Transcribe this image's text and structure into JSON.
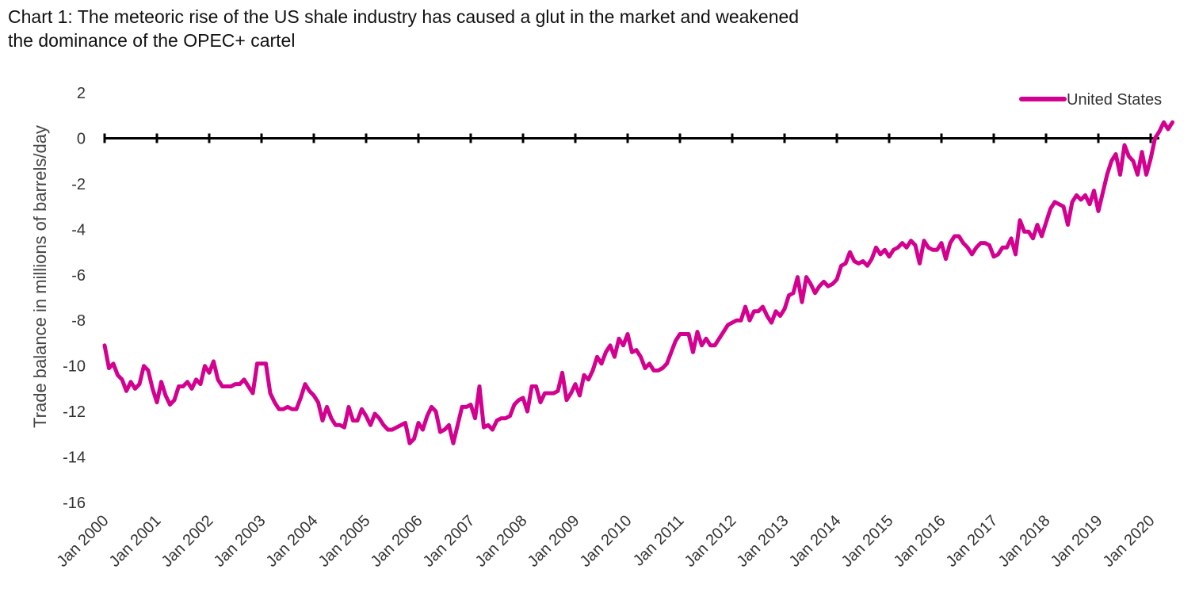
{
  "chart_data": {
    "type": "line",
    "title": "Chart 1: The meteoric rise of the US shale industry has caused a glut in the market and weakened\nthe dominance of the OPEC+ cartel",
    "ylabel": "Trade balance in millions of barrels/day",
    "xlabel": "",
    "ylim": [
      -16,
      2
    ],
    "yticks": [
      2,
      0,
      -2,
      -4,
      -6,
      -8,
      -10,
      -12,
      -14,
      -16
    ],
    "xticks": [
      "Jan 2000",
      "Jan 2001",
      "Jan 2002",
      "Jan 2003",
      "Jan 2004",
      "Jan 2005",
      "Jan 2006",
      "Jan 2007",
      "Jan 2008",
      "Jan 2009",
      "Jan 2010",
      "Jan 2011",
      "Jan 2012",
      "Jan 2013",
      "Jan 2014",
      "Jan 2015",
      "Jan 2016",
      "Jan 2017",
      "Jan 2018",
      "Jan 2019",
      "Jan 2020"
    ],
    "legend_position": "top-right",
    "colors": {
      "series": "#d4008f",
      "axis": "#000000"
    },
    "series": [
      {
        "name": "United States",
        "values": [
          -9.1,
          -10.1,
          -9.9,
          -10.4,
          -10.6,
          -11.1,
          -10.7,
          -11.0,
          -10.8,
          -10.0,
          -10.2,
          -11.0,
          -11.6,
          -10.7,
          -11.3,
          -11.7,
          -11.5,
          -10.9,
          -10.9,
          -10.7,
          -11.0,
          -10.6,
          -10.8,
          -10.0,
          -10.3,
          -9.8,
          -10.6,
          -10.9,
          -10.9,
          -10.9,
          -10.8,
          -10.8,
          -10.6,
          -10.9,
          -11.2,
          -9.9,
          -9.9,
          -9.9,
          -11.2,
          -11.6,
          -11.9,
          -11.9,
          -11.8,
          -11.9,
          -11.9,
          -11.4,
          -10.8,
          -11.1,
          -11.3,
          -11.6,
          -12.4,
          -11.8,
          -12.3,
          -12.6,
          -12.6,
          -12.7,
          -11.8,
          -12.4,
          -12.4,
          -11.9,
          -12.2,
          -12.6,
          -12.1,
          -12.3,
          -12.6,
          -12.8,
          -12.8,
          -12.7,
          -12.6,
          -12.5,
          -13.4,
          -13.2,
          -12.5,
          -12.8,
          -12.2,
          -11.8,
          -12.0,
          -12.9,
          -12.8,
          -12.6,
          -13.4,
          -12.6,
          -11.8,
          -11.8,
          -11.7,
          -12.3,
          -10.9,
          -12.7,
          -12.6,
          -12.8,
          -12.4,
          -12.3,
          -12.3,
          -12.2,
          -11.7,
          -11.5,
          -11.4,
          -12.0,
          -10.9,
          -10.9,
          -11.6,
          -11.2,
          -11.2,
          -11.2,
          -11.1,
          -10.3,
          -11.5,
          -11.2,
          -10.8,
          -11.3,
          -10.4,
          -10.6,
          -10.2,
          -9.6,
          -9.9,
          -9.4,
          -9.1,
          -9.6,
          -8.8,
          -9.1,
          -8.6,
          -9.4,
          -9.3,
          -9.6,
          -10.1,
          -9.9,
          -10.2,
          -10.2,
          -10.1,
          -9.9,
          -9.4,
          -8.9,
          -8.6,
          -8.6,
          -8.6,
          -9.4,
          -8.5,
          -9.1,
          -8.8,
          -9.1,
          -9.1,
          -8.8,
          -8.5,
          -8.2,
          -8.1,
          -8.0,
          -8.0,
          -7.4,
          -8.0,
          -7.6,
          -7.6,
          -7.4,
          -7.8,
          -8.1,
          -7.6,
          -7.8,
          -7.5,
          -6.9,
          -6.8,
          -6.1,
          -7.2,
          -6.1,
          -6.4,
          -6.8,
          -6.5,
          -6.3,
          -6.5,
          -6.4,
          -6.2,
          -5.6,
          -5.5,
          -5.0,
          -5.4,
          -5.5,
          -5.4,
          -5.6,
          -5.3,
          -4.8,
          -5.1,
          -4.9,
          -5.2,
          -4.9,
          -4.8,
          -4.6,
          -4.8,
          -4.5,
          -4.7,
          -5.5,
          -4.5,
          -4.8,
          -4.9,
          -4.9,
          -4.6,
          -5.3,
          -4.6,
          -4.3,
          -4.3,
          -4.6,
          -4.8,
          -5.1,
          -4.8,
          -4.6,
          -4.6,
          -4.7,
          -5.2,
          -5.1,
          -4.8,
          -4.8,
          -4.4,
          -5.1,
          -3.6,
          -4.1,
          -4.1,
          -4.4,
          -3.8,
          -4.3,
          -3.7,
          -3.1,
          -2.8,
          -2.9,
          -3.0,
          -3.8,
          -2.8,
          -2.5,
          -2.7,
          -2.5,
          -2.9,
          -2.3,
          -3.2,
          -2.4,
          -1.6,
          -1.0,
          -0.7,
          -1.6,
          -0.3,
          -0.8,
          -1.0,
          -1.6,
          -0.6,
          -1.6,
          -0.9,
          0.0,
          0.3,
          0.7,
          0.4,
          0.7
        ]
      }
    ]
  }
}
